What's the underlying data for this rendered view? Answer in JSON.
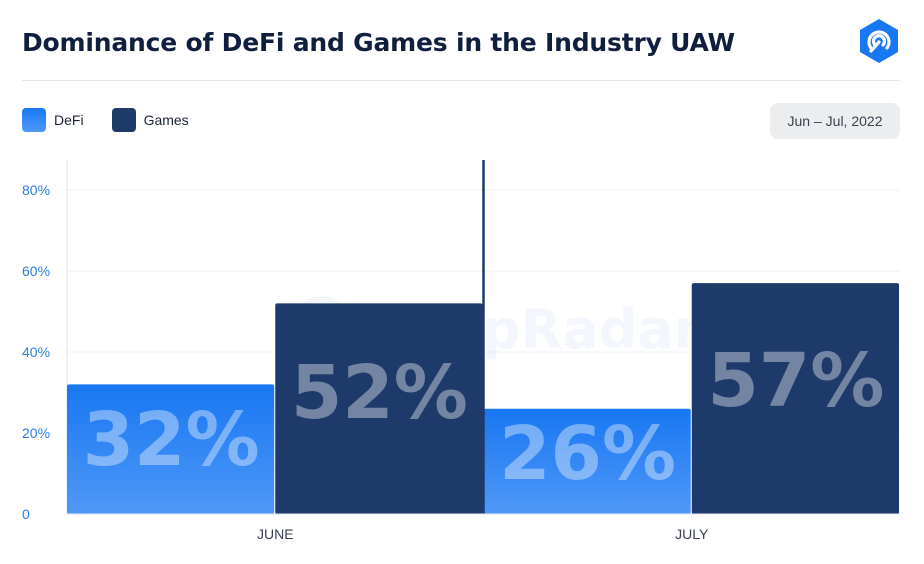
{
  "header": {
    "title": "Dominance of DeFi and Games in the Industry UAW",
    "date_range": "Jun – Jul, 2022"
  },
  "watermark": "DappRadar",
  "colors": {
    "defi_top": "#1877f2",
    "defi_bottom": "#4f98f7",
    "games": "#1e3a6a",
    "tick_text": "#2a7de1",
    "logo": "#1877f2"
  },
  "chart_data": {
    "type": "bar",
    "title": "Dominance of DeFi and Games in the Industry UAW",
    "categories": [
      "JUNE",
      "JULY"
    ],
    "series": [
      {
        "name": "DeFi",
        "values": [
          32,
          26
        ],
        "labels": [
          "32%",
          "26%"
        ]
      },
      {
        "name": "Games",
        "values": [
          52,
          57
        ],
        "labels": [
          "52%",
          "57%"
        ]
      }
    ],
    "yticks": [
      0,
      20,
      40,
      60,
      80
    ],
    "ytick_labels": [
      "0",
      "20%",
      "40%",
      "60%",
      "80%"
    ],
    "ylim": [
      0,
      84
    ],
    "grid": true,
    "legend": "top-left",
    "xlabel": "",
    "ylabel": ""
  }
}
